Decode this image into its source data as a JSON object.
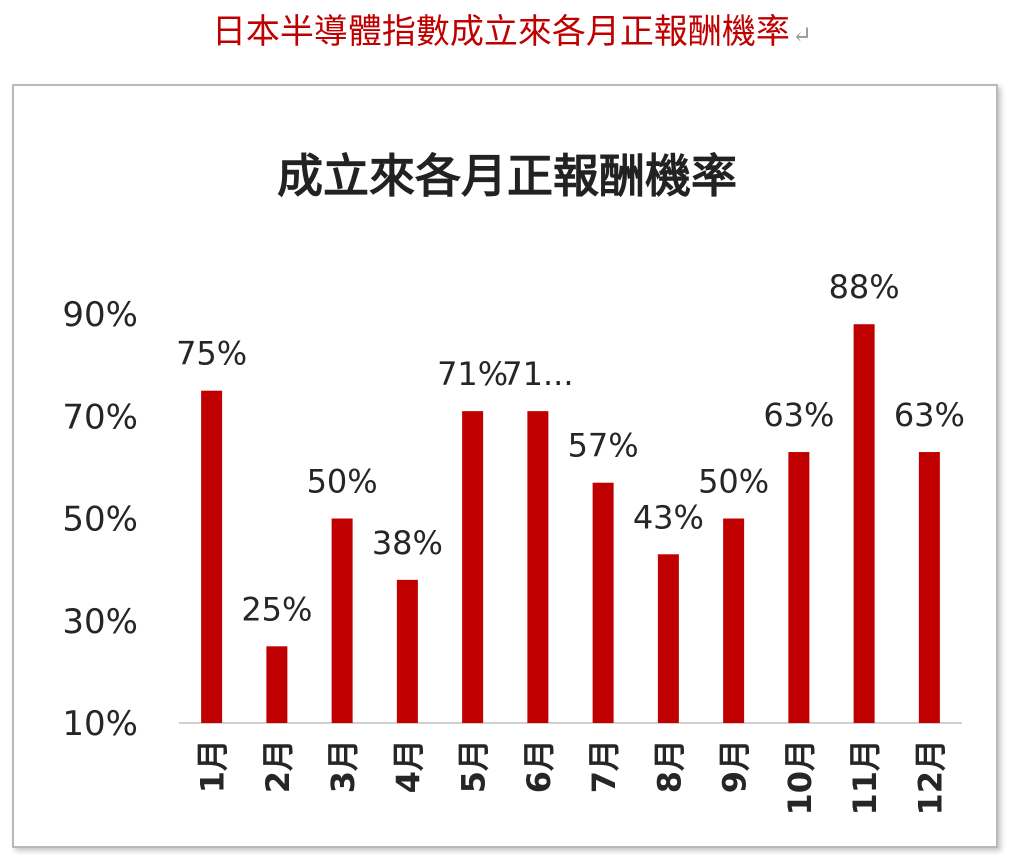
{
  "document": {
    "caption": "日本半導體指數成立來各月正報酬機率",
    "caption_color": "#c00000"
  },
  "chart_data": {
    "type": "bar",
    "title": "成立來各月正報酬機率",
    "categories": [
      "1月",
      "2月",
      "3月",
      "4月",
      "5月",
      "6月",
      "7月",
      "8月",
      "9月",
      "10月",
      "11月",
      "12月"
    ],
    "values": [
      75,
      25,
      50,
      38,
      71,
      71,
      57,
      43,
      50,
      63,
      88,
      63
    ],
    "data_labels": [
      "75%",
      "25%",
      "50%",
      "38%",
      "71%",
      "71...",
      "57%",
      "43%",
      "50%",
      "63%",
      "88%",
      "63%"
    ],
    "y_ticks": [
      10,
      30,
      50,
      70,
      90
    ],
    "y_tick_labels": [
      "10%",
      "30%",
      "50%",
      "70%",
      "90%"
    ],
    "ylim": [
      10,
      90
    ],
    "bar_color": "#c00000",
    "grid": false,
    "legend": "none"
  }
}
